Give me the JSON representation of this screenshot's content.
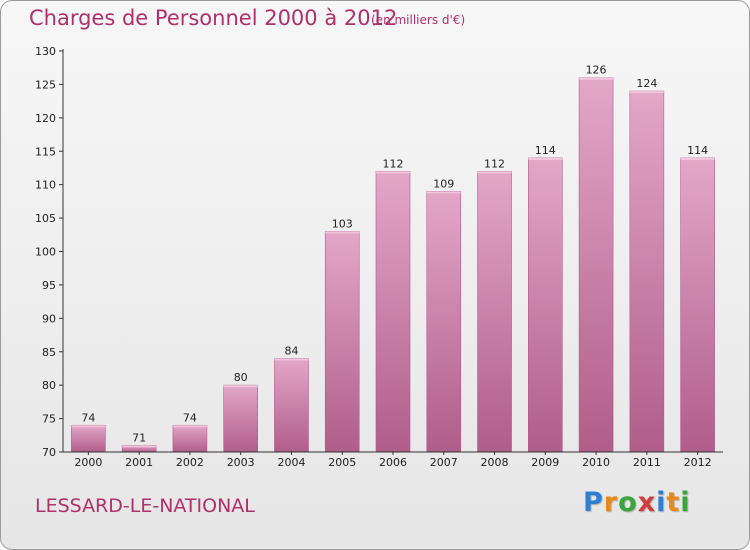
{
  "header": {
    "title": "Charges de Personnel 2000 à 2012",
    "subtitle": "(en milliers d'€)"
  },
  "footer": {
    "commune": "LESSARD-LE-NATIONAL",
    "logo": [
      "P",
      "r",
      "o",
      "x",
      "i",
      "t",
      "i"
    ],
    "logo_colors": [
      "#2f7fd0",
      "#e88a1a",
      "#3aa53a",
      "#d43a3a",
      "#2f7fd0",
      "#e88a1a",
      "#3aa53a"
    ]
  },
  "colors": {
    "bar": "#c97aa4",
    "bar_light": "#e3a7c8",
    "bar_dark": "#b05d8a",
    "title": "#b0306a"
  },
  "chart_data": {
    "type": "bar",
    "categories": [
      "2000",
      "2001",
      "2002",
      "2003",
      "2004",
      "2005",
      "2006",
      "2007",
      "2008",
      "2009",
      "2010",
      "2011",
      "2012"
    ],
    "values": [
      74,
      71,
      74,
      80,
      84,
      103,
      112,
      109,
      112,
      114,
      126,
      124,
      114
    ],
    "ylim": [
      70,
      130
    ],
    "yticks": [
      70,
      75,
      80,
      85,
      90,
      95,
      100,
      105,
      110,
      115,
      120,
      125,
      130
    ],
    "grid": false
  }
}
